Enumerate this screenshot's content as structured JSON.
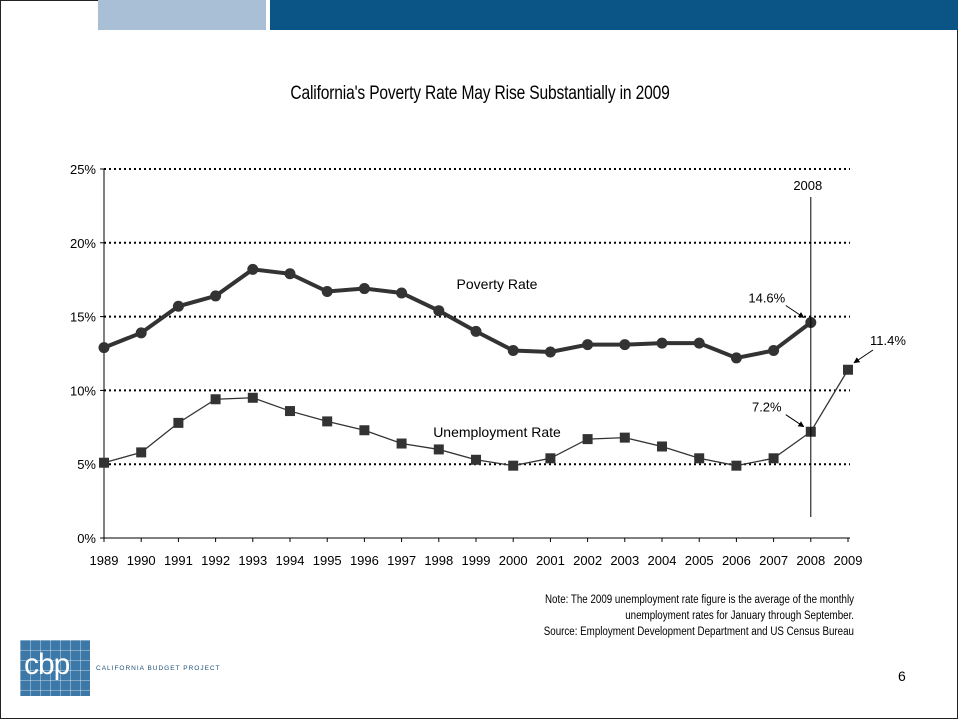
{
  "slide": {
    "page_number": "6",
    "logo_letters": "cbp",
    "logo_name": "CALIFORNIA BUDGET PROJECT",
    "note_lines": [
      "Note: The 2009 unemployment rate figure is the average of the monthly",
      "unemployment rates for January through September.",
      "Source: Employment Development Department and US Census Bureau"
    ],
    "colors": {
      "band_light": "#a8bfd6",
      "band_dark": "#0b5486",
      "series_line": "#333333",
      "logo_blue": "#3c78a8"
    }
  },
  "chart_data": {
    "type": "line",
    "title": "California's Poverty Rate May Rise Substantially in 2009",
    "xlabel": "",
    "ylabel": "",
    "x": [
      "1989",
      "1990",
      "1991",
      "1992",
      "1993",
      "1994",
      "1995",
      "1996",
      "1997",
      "1998",
      "1999",
      "2000",
      "2001",
      "2002",
      "2003",
      "2004",
      "2005",
      "2006",
      "2007",
      "2008",
      "2009"
    ],
    "ylim": [
      0,
      25
    ],
    "y_ticks": [
      "0%",
      "5%",
      "10%",
      "15%",
      "20%",
      "25%"
    ],
    "grid": "dotted horizontal at 5%, 10%, 15%, 20%, 25%",
    "series": [
      {
        "name": "Poverty Rate",
        "marker": "circle",
        "values": [
          12.9,
          13.9,
          15.7,
          16.4,
          18.2,
          17.9,
          16.7,
          16.9,
          16.6,
          15.4,
          14.0,
          12.7,
          12.6,
          13.1,
          13.1,
          13.2,
          13.2,
          12.2,
          12.7,
          14.6,
          null
        ]
      },
      {
        "name": "Unemployment Rate",
        "marker": "square",
        "values": [
          5.1,
          5.8,
          7.8,
          9.4,
          9.5,
          8.6,
          7.9,
          7.3,
          6.4,
          6.0,
          5.3,
          4.9,
          5.4,
          6.7,
          6.8,
          6.2,
          5.4,
          4.9,
          5.4,
          7.2,
          11.4
        ]
      }
    ],
    "annotations": [
      {
        "text": "2008",
        "kind": "vertical-line",
        "x": "2008"
      },
      {
        "text": "14.6%",
        "kind": "arrow-label",
        "x": "2008",
        "y": 14.6
      },
      {
        "text": "7.2%",
        "kind": "arrow-label",
        "x": "2008",
        "y": 7.2
      },
      {
        "text": "11.4%",
        "kind": "arrow-label",
        "x": "2009",
        "y": 11.4
      }
    ]
  }
}
